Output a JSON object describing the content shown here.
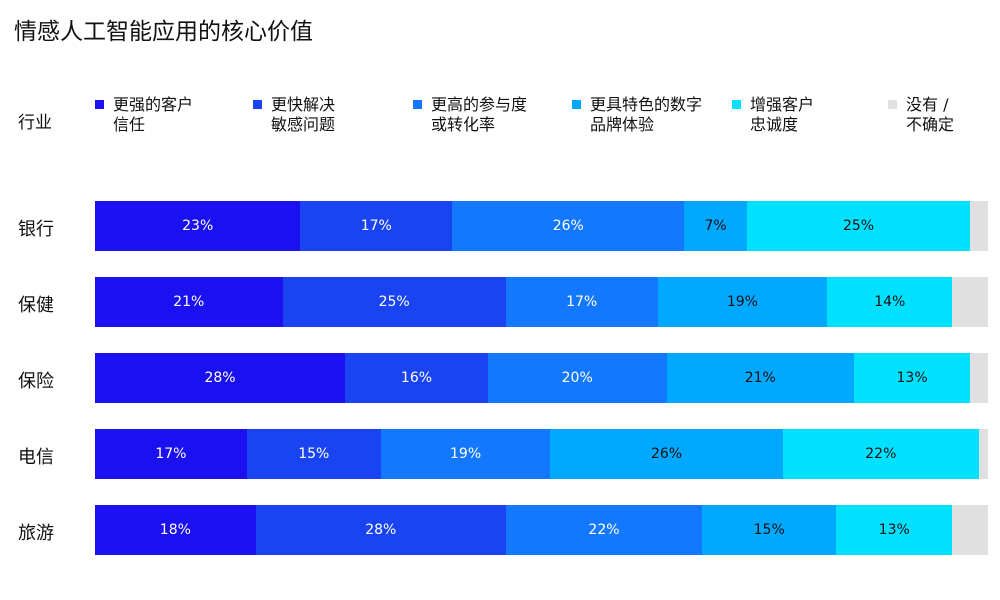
{
  "chart_data": {
    "type": "bar",
    "orientation": "horizontal",
    "stacked": true,
    "title": "情感人工智能应用的核心价值",
    "row_header": "行业",
    "categories": [
      "银行",
      "保健",
      "保险",
      "电信",
      "旅游"
    ],
    "xlim": [
      0,
      100
    ],
    "legend_position": "top",
    "series": [
      {
        "name": "更强的客户信任",
        "lines": [
          "更强的客户",
          "信任"
        ],
        "color": "#1A10F0",
        "label_color": "#ffffff",
        "values": [
          23,
          21,
          28,
          17,
          18
        ]
      },
      {
        "name": "更快解决敏感问题",
        "lines": [
          "更快解决",
          "敏感问题"
        ],
        "color": "#1A44F2",
        "label_color": "#ffffff",
        "values": [
          17,
          25,
          16,
          15,
          28
        ]
      },
      {
        "name": "更高的参与度或转化率",
        "lines": [
          "更高的参与度",
          "或转化率"
        ],
        "color": "#1478FF",
        "label_color": "#ffffff",
        "values": [
          26,
          17,
          20,
          19,
          22
        ]
      },
      {
        "name": "更具特色的数字品牌体验",
        "lines": [
          "更具特色的数字",
          "品牌体验"
        ],
        "color": "#00A8FF",
        "label_color": "#111111",
        "values": [
          7,
          19,
          21,
          26,
          15
        ]
      },
      {
        "name": "增强客户忠诚度",
        "lines": [
          "增强客户",
          "忠诚度"
        ],
        "color": "#00E0FF",
        "label_color": "#111111",
        "values": [
          25,
          14,
          13,
          22,
          13
        ]
      },
      {
        "name": "没有 / 不确定",
        "lines": [
          "没有 /",
          "不确定"
        ],
        "color": "#E0E0E0",
        "label_color": "#111111",
        "values": [
          2,
          4,
          2,
          1,
          4
        ],
        "show_labels": false
      }
    ]
  }
}
